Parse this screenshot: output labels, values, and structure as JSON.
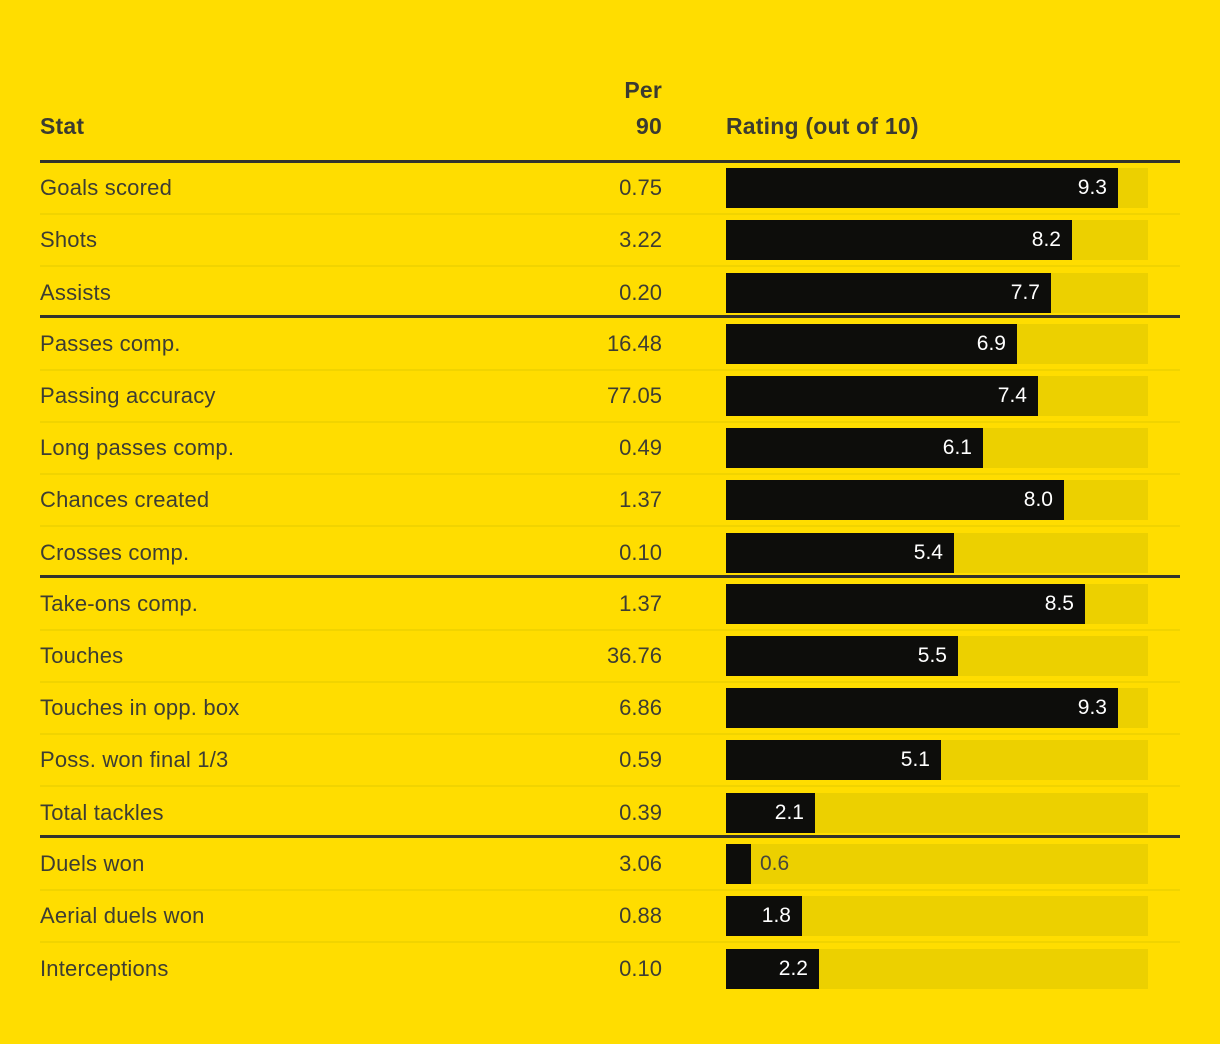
{
  "colors": {
    "background": "#ffdd00",
    "track": "#ecd000",
    "bar": "#0d0d0b",
    "text_dark": "#3d3d33",
    "divider_thick": "#33332b",
    "divider_thin": "#f1d400",
    "bar_label_inside": "#ffffff",
    "bar_label_outside": "#46463c"
  },
  "header": {
    "stat": "Stat",
    "per90_line1": "Per",
    "per90_line2": "90",
    "rating": "Rating (out of 10)"
  },
  "chart_data": {
    "type": "bar",
    "title": "",
    "value_label": "Rating (out of 10)",
    "value_axis": {
      "min": 0,
      "max": 10
    },
    "legend": false,
    "grid": false,
    "groups": [
      {
        "rows": [
          {
            "stat": "Goals scored",
            "per_90": "0.75",
            "rating": 9.3
          },
          {
            "stat": "Shots",
            "per_90": "3.22",
            "rating": 8.2
          },
          {
            "stat": "Assists",
            "per_90": "0.20",
            "rating": 7.7
          }
        ]
      },
      {
        "rows": [
          {
            "stat": "Passes comp.",
            "per_90": "16.48",
            "rating": 6.9
          },
          {
            "stat": "Passing accuracy",
            "per_90": "77.05",
            "rating": 7.4
          },
          {
            "stat": "Long passes comp.",
            "per_90": "0.49",
            "rating": 6.1
          },
          {
            "stat": "Chances created",
            "per_90": "1.37",
            "rating": 8.0
          },
          {
            "stat": "Crosses comp.",
            "per_90": "0.10",
            "rating": 5.4
          }
        ]
      },
      {
        "rows": [
          {
            "stat": "Take-ons comp.",
            "per_90": "1.37",
            "rating": 8.5
          },
          {
            "stat": "Touches",
            "per_90": "36.76",
            "rating": 5.5
          },
          {
            "stat": "Touches in opp. box",
            "per_90": "6.86",
            "rating": 9.3
          },
          {
            "stat": "Poss. won final 1/3",
            "per_90": "0.59",
            "rating": 5.1
          },
          {
            "stat": "Total tackles",
            "per_90": "0.39",
            "rating": 2.1
          }
        ]
      },
      {
        "rows": [
          {
            "stat": "Duels won",
            "per_90": "3.06",
            "rating": 0.6
          },
          {
            "stat": "Aerial duels won",
            "per_90": "0.88",
            "rating": 1.8
          },
          {
            "stat": "Interceptions",
            "per_90": "0.10",
            "rating": 2.2
          }
        ]
      }
    ]
  }
}
